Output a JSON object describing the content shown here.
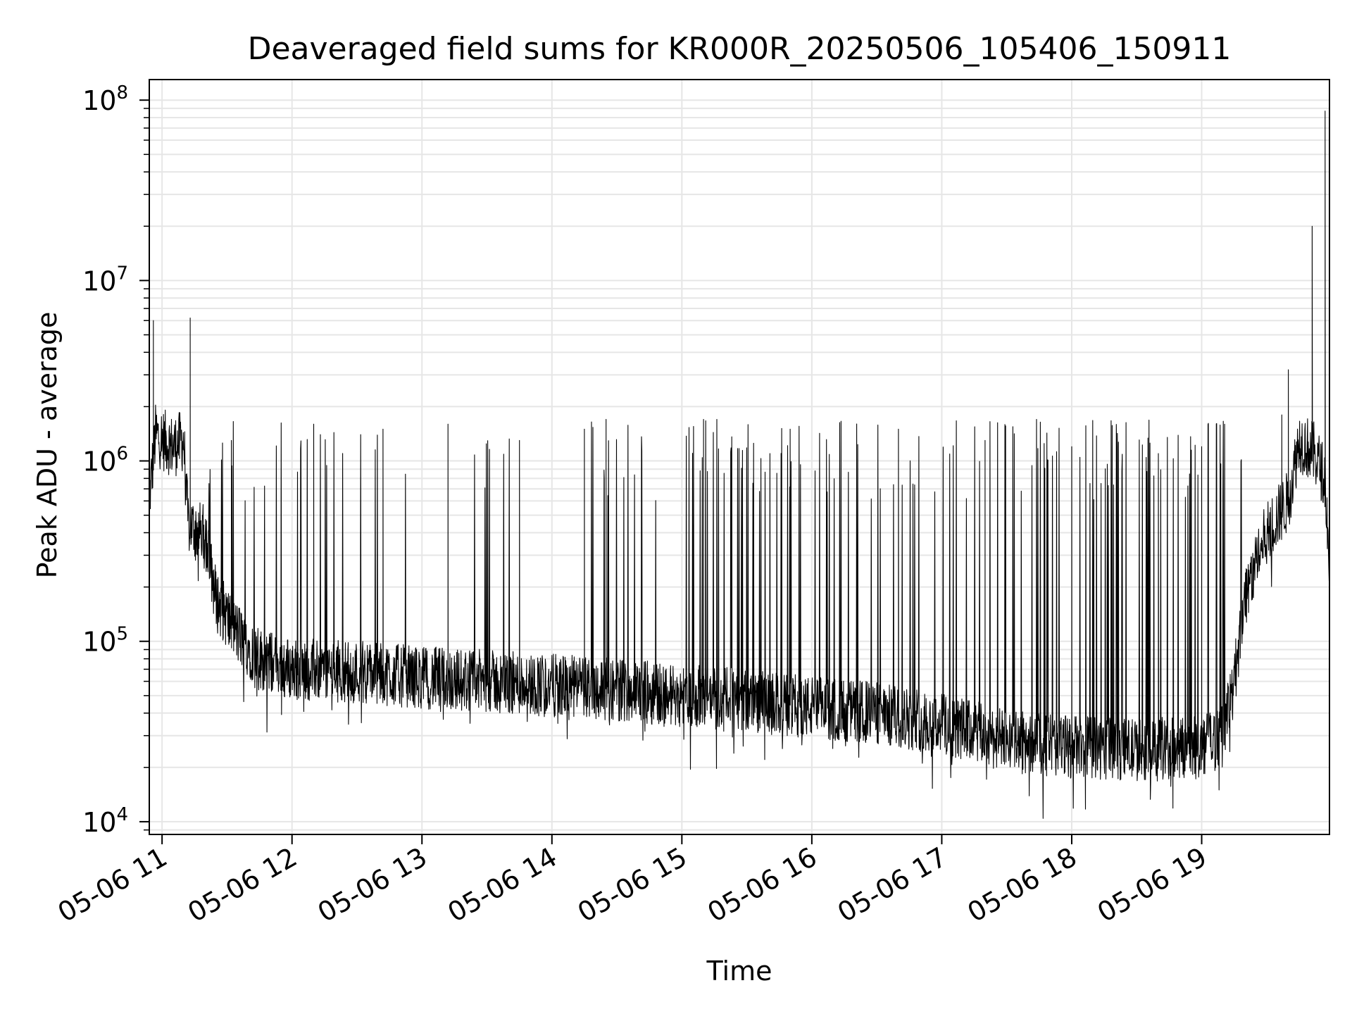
{
  "chart_data": {
    "type": "line",
    "title": "Deaveraged field sums for KR000R_20250506_105406_150911",
    "xlabel": "Time",
    "ylabel": "Peak ADU - average",
    "yscale": "log",
    "ylim": [
      8500,
      130000000
    ],
    "xlim": [
      "2025-05-06T10:54:06",
      "2025-05-06T19:59:00"
    ],
    "grid": true,
    "line_color": "#000000",
    "grid_color": "#e6e6e6",
    "x_ticks": [
      {
        "at": "2025-05-06T11:00",
        "label": "05-06 11"
      },
      {
        "at": "2025-05-06T12:00",
        "label": "05-06 12"
      },
      {
        "at": "2025-05-06T13:00",
        "label": "05-06 13"
      },
      {
        "at": "2025-05-06T14:00",
        "label": "05-06 14"
      },
      {
        "at": "2025-05-06T15:00",
        "label": "05-06 15"
      },
      {
        "at": "2025-05-06T16:00",
        "label": "05-06 16"
      },
      {
        "at": "2025-05-06T17:00",
        "label": "05-06 17"
      },
      {
        "at": "2025-05-06T18:00",
        "label": "05-06 18"
      },
      {
        "at": "2025-05-06T19:00",
        "label": "05-06 19"
      }
    ],
    "y_ticks": [
      {
        "value": 10000,
        "base": "10",
        "exp": "4"
      },
      {
        "value": 100000,
        "base": "10",
        "exp": "5"
      },
      {
        "value": 1000000,
        "base": "10",
        "exp": "6"
      },
      {
        "value": 10000000,
        "base": "10",
        "exp": "7"
      },
      {
        "value": 100000000,
        "base": "10",
        "exp": "8"
      }
    ],
    "baseline": [
      {
        "t": "2025-05-06T10:54",
        "y": 600000
      },
      {
        "t": "2025-05-06T10:57",
        "y": 1400000
      },
      {
        "t": "2025-05-06T11:05",
        "y": 1200000
      },
      {
        "t": "2025-05-06T11:10",
        "y": 1300000
      },
      {
        "t": "2025-05-06T11:12",
        "y": 450000
      },
      {
        "t": "2025-05-06T11:20",
        "y": 380000
      },
      {
        "t": "2025-05-06T11:25",
        "y": 170000
      },
      {
        "t": "2025-05-06T11:35",
        "y": 110000
      },
      {
        "t": "2025-05-06T11:45",
        "y": 80000
      },
      {
        "t": "2025-05-06T12:00",
        "y": 70000
      },
      {
        "t": "2025-05-06T12:30",
        "y": 68000
      },
      {
        "t": "2025-05-06T13:00",
        "y": 63000
      },
      {
        "t": "2025-05-06T13:30",
        "y": 60000
      },
      {
        "t": "2025-05-06T14:00",
        "y": 57000
      },
      {
        "t": "2025-05-06T14:30",
        "y": 54000
      },
      {
        "t": "2025-05-06T15:00",
        "y": 50000
      },
      {
        "t": "2025-05-06T15:30",
        "y": 47000
      },
      {
        "t": "2025-05-06T16:00",
        "y": 43000
      },
      {
        "t": "2025-05-06T16:30",
        "y": 40000
      },
      {
        "t": "2025-05-06T17:00",
        "y": 35000
      },
      {
        "t": "2025-05-06T17:30",
        "y": 28000
      },
      {
        "t": "2025-05-06T18:00",
        "y": 26000
      },
      {
        "t": "2025-05-06T18:30",
        "y": 25000
      },
      {
        "t": "2025-05-06T19:00",
        "y": 26000
      },
      {
        "t": "2025-05-06T19:10",
        "y": 30000
      },
      {
        "t": "2025-05-06T19:15",
        "y": 60000
      },
      {
        "t": "2025-05-06T19:20",
        "y": 180000
      },
      {
        "t": "2025-05-06T19:30",
        "y": 400000
      },
      {
        "t": "2025-05-06T19:40",
        "y": 600000
      },
      {
        "t": "2025-05-06T19:45",
        "y": 1300000
      },
      {
        "t": "2025-05-06T19:52",
        "y": 1100000
      },
      {
        "t": "2025-05-06T19:57",
        "y": 800000
      },
      {
        "t": "2025-05-06T19:59",
        "y": 250000
      }
    ],
    "spikes": [
      {
        "t": "2025-05-06T10:56",
        "y": 6000000
      },
      {
        "t": "2025-05-06T11:13",
        "y": 6200000
      },
      {
        "t": "2025-05-06T11:32",
        "y": 1300000
      },
      {
        "t": "2025-05-06T12:10",
        "y": 1600000
      },
      {
        "t": "2025-05-06T12:42",
        "y": 1500000
      },
      {
        "t": "2025-05-06T13:12",
        "y": 1600000
      },
      {
        "t": "2025-05-06T13:45",
        "y": 1300000
      },
      {
        "t": "2025-05-06T14:15",
        "y": 1500000
      },
      {
        "t": "2025-05-06T14:25",
        "y": 1700000
      },
      {
        "t": "2025-05-06T15:10",
        "y": 1700000
      },
      {
        "t": "2025-05-06T15:50",
        "y": 1500000
      },
      {
        "t": "2025-05-06T16:40",
        "y": 1500000
      },
      {
        "t": "2025-05-06T17:20",
        "y": 1300000
      },
      {
        "t": "2025-05-06T18:00",
        "y": 1200000
      },
      {
        "t": "2025-05-06T18:40",
        "y": 1100000
      },
      {
        "t": "2025-05-06T19:00",
        "y": 1200000
      },
      {
        "t": "2025-05-06T19:37",
        "y": 1800000
      },
      {
        "t": "2025-05-06T19:40",
        "y": 3200000
      },
      {
        "t": "2025-05-06T19:51",
        "y": 20000000
      },
      {
        "t": "2025-05-06T19:57",
        "y": 87000000
      },
      {
        "t": "2025-05-06T19:59",
        "y": 1400000
      }
    ]
  }
}
